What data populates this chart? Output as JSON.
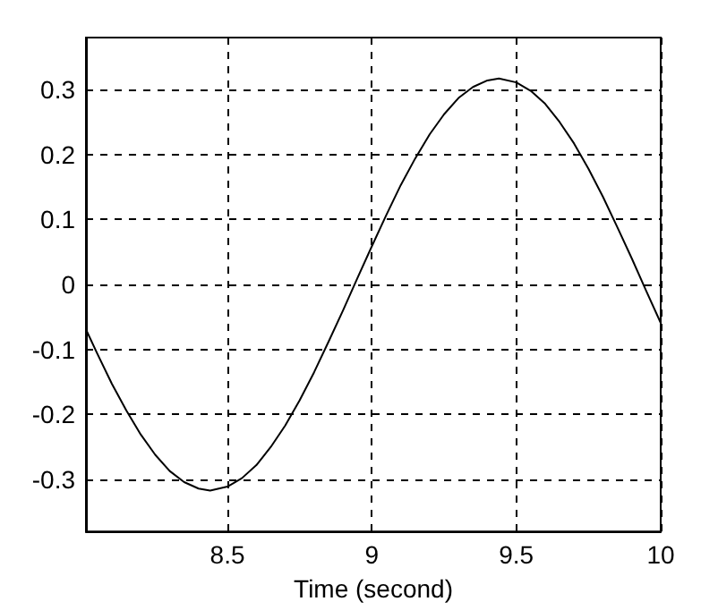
{
  "chart_data": {
    "type": "line",
    "xlabel": "Time (second)",
    "x": [
      8.01,
      8.05,
      8.1,
      8.15,
      8.2,
      8.25,
      8.3,
      8.35,
      8.4,
      8.44,
      8.5,
      8.55,
      8.6,
      8.65,
      8.7,
      8.75,
      8.8,
      8.85,
      8.9,
      8.95,
      9.0,
      9.05,
      9.1,
      9.15,
      9.2,
      9.25,
      9.3,
      9.35,
      9.4,
      9.44,
      9.5,
      9.55,
      9.6,
      9.65,
      9.7,
      9.75,
      9.8,
      9.85,
      9.9,
      9.95,
      10
    ],
    "series": [
      {
        "color": "#000000",
        "values": [
          -0.069,
          -0.107,
          -0.153,
          -0.194,
          -0.231,
          -0.262,
          -0.287,
          -0.304,
          -0.314,
          -0.317,
          -0.311,
          -0.298,
          -0.278,
          -0.25,
          -0.217,
          -0.178,
          -0.135,
          -0.088,
          -0.04,
          0.01,
          0.059,
          0.107,
          0.153,
          0.194,
          0.231,
          0.262,
          0.287,
          0.304,
          0.314,
          0.317,
          0.311,
          0.298,
          0.278,
          0.25,
          0.217,
          0.178,
          0.135,
          0.088,
          0.04,
          -0.01,
          -0.059
        ]
      }
    ],
    "xlim": [
      8.01,
      10
    ],
    "xticks": [
      8.5,
      9,
      9.5,
      10
    ],
    "ylim": [
      -0.38,
      0.38
    ],
    "yticks": [
      -0.3,
      -0.2,
      -0.1,
      0,
      0.1,
      0.2,
      0.3
    ],
    "grid": true,
    "marker": "none",
    "line_style": "solid"
  }
}
